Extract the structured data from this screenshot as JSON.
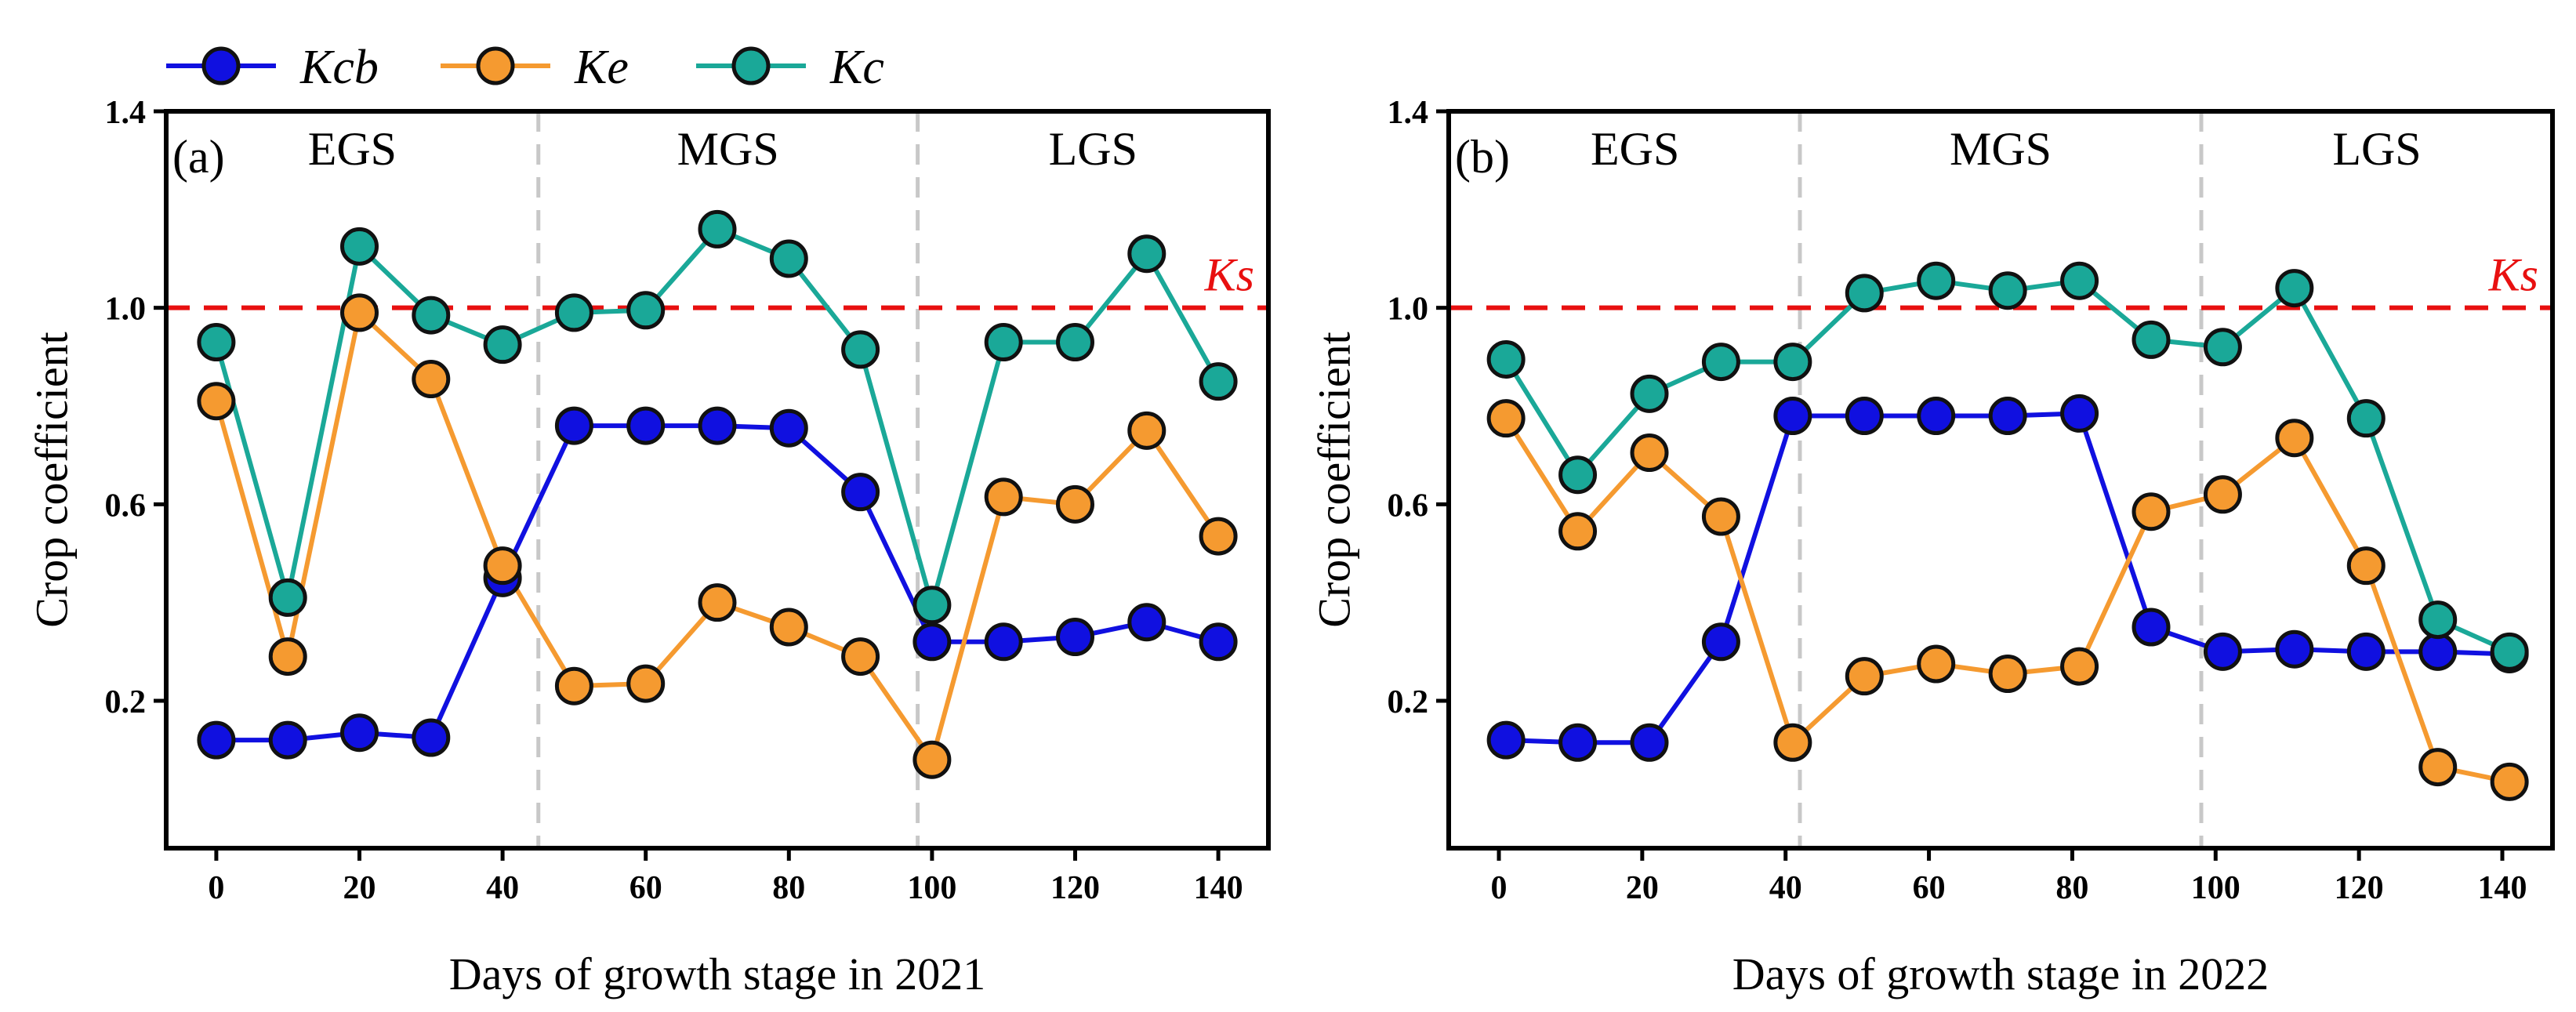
{
  "chart_data": [
    {
      "type": "line",
      "panel_label": "(a)",
      "xlabel": "Days of growth stage in 2021",
      "ylabel": "Crop coefficient",
      "xlim": [
        -7,
        147
      ],
      "ylim": [
        -0.1,
        1.4
      ],
      "xticks": [
        0,
        20,
        40,
        60,
        80,
        100,
        120,
        140
      ],
      "yticks": [
        0.2,
        0.6,
        1.0,
        1.4
      ],
      "ytick_labels": [
        "0.2",
        "0.6",
        "1.0",
        "1.4"
      ],
      "x": [
        0,
        10,
        20,
        30,
        40,
        50,
        60,
        70,
        80,
        90,
        100,
        110,
        120,
        130,
        140
      ],
      "series": [
        {
          "name": "Kcb",
          "color": "#1010e0",
          "values": [
            0.12,
            0.12,
            0.135,
            0.125,
            0.45,
            0.76,
            0.76,
            0.76,
            0.755,
            0.625,
            0.32,
            0.32,
            0.33,
            0.36,
            0.32
          ]
        },
        {
          "name": "Ke",
          "color": "#f59a30",
          "values": [
            0.81,
            0.29,
            0.99,
            0.855,
            0.475,
            0.23,
            0.235,
            0.4,
            0.35,
            0.29,
            0.08,
            0.615,
            0.6,
            0.75,
            0.535
          ]
        },
        {
          "name": "Kc",
          "color": "#1aa898",
          "values": [
            0.93,
            0.41,
            1.125,
            0.985,
            0.925,
            0.99,
            0.995,
            1.16,
            1.1,
            0.915,
            0.395,
            0.93,
            0.93,
            1.11,
            0.85
          ]
        }
      ],
      "reference_line": {
        "label": "Ks",
        "value": 1.0,
        "color": "#e81010"
      },
      "stage_dividers": [
        45,
        98
      ],
      "stages": [
        {
          "label": "EGS",
          "x_center": 19
        },
        {
          "label": "MGS",
          "x_center": 71.5
        },
        {
          "label": "LGS",
          "x_center": 122.5
        }
      ]
    },
    {
      "type": "line",
      "panel_label": "(b)",
      "xlabel": "Days of growth stage in 2022",
      "ylabel": "Crop coefficient",
      "xlim": [
        -7,
        147
      ],
      "ylim": [
        -0.1,
        1.4
      ],
      "xticks": [
        0,
        20,
        40,
        60,
        80,
        100,
        120,
        140
      ],
      "yticks": [
        0.2,
        0.6,
        1.0,
        1.4
      ],
      "ytick_labels": [
        "0.2",
        "0.6",
        "1.0",
        "1.4"
      ],
      "x": [
        1,
        11,
        21,
        31,
        41,
        51,
        61,
        71,
        81,
        91,
        101,
        111,
        121,
        131,
        141
      ],
      "series": [
        {
          "name": "Kcb",
          "color": "#1010e0",
          "values": [
            0.12,
            0.115,
            0.115,
            0.32,
            0.78,
            0.78,
            0.78,
            0.78,
            0.785,
            0.35,
            0.3,
            0.305,
            0.3,
            0.3,
            0.295
          ]
        },
        {
          "name": "Ke",
          "color": "#f59a30",
          "values": [
            0.775,
            0.545,
            0.705,
            0.575,
            0.115,
            0.25,
            0.275,
            0.255,
            0.27,
            0.585,
            0.62,
            0.735,
            0.475,
            0.065,
            0.035
          ]
        },
        {
          "name": "Kc",
          "color": "#1aa898",
          "values": [
            0.895,
            0.66,
            0.825,
            0.89,
            0.89,
            1.03,
            1.055,
            1.035,
            1.055,
            0.935,
            0.92,
            1.04,
            0.775,
            0.365,
            0.3
          ]
        }
      ],
      "reference_line": {
        "label": "Ks",
        "value": 1.0,
        "color": "#e81010"
      },
      "stage_dividers": [
        42,
        98
      ],
      "stages": [
        {
          "label": "EGS",
          "x_center": 19
        },
        {
          "label": "MGS",
          "x_center": 70
        },
        {
          "label": "LGS",
          "x_center": 122.5
        }
      ]
    }
  ],
  "legend": [
    {
      "name": "Kcb",
      "color": "#1010e0"
    },
    {
      "name": "Ke",
      "color": "#f59a30"
    },
    {
      "name": "Kc",
      "color": "#1aa898"
    }
  ]
}
